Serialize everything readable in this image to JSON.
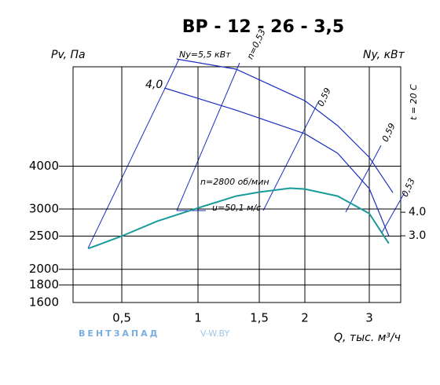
{
  "chart_data": {
    "type": "line",
    "title": "ВР - 12 - 26 - 3,5",
    "y_label": "Pv, Па",
    "y2_label": "Ny, кВт",
    "x_label": "Q, тыс. м³/ч",
    "temperature": "t = 20 С",
    "watermark": "ВЕНТЗАПАД",
    "watermark_url": "V-W.BY",
    "annotations": [
      "Ny=5,5 кВт",
      "4,0",
      "n=0,53",
      "0,59",
      "0,59",
      "0,53",
      "n=2800 об/мин",
      "u=50,1 м/с"
    ],
    "xlim": [
      0.18,
      3.5
    ],
    "xticks": [
      {
        "value": 0.5,
        "label": "0,5"
      },
      1,
      {
        "value": 1.5,
        "label": "1,5"
      },
      2,
      3
    ],
    "ylim": [
      1600,
      7800
    ],
    "yticks": [
      1600,
      1800,
      2000,
      2500,
      3000,
      4000
    ],
    "log_y": true,
    "y2lim": [
      0.17,
      10.17
    ],
    "y2ticks": [
      {
        "value": 4.0,
        "label": "4.0"
      },
      {
        "value": 3.0,
        "label": "3.0"
      }
    ],
    "grid": true,
    "series": [
      {
        "name": "Pv",
        "color": "#1a9a9a",
        "x": [
          0.28,
          0.5,
          0.73,
          1.0,
          1.31,
          1.5,
          1.84,
          2.0,
          2.51,
          3.0,
          3.31
        ],
        "values": [
          2300,
          2500,
          2760,
          3020,
          3270,
          3360,
          3450,
          3430,
          3270,
          2910,
          2380
        ]
      },
      {
        "name": "Ny 5,5",
        "color": "#1a2fc0",
        "axis": "y2",
        "x": [
          0.86,
          1.31,
          2.0,
          2.51,
          3.0,
          3.375
        ],
        "values": [
          10.5,
          10.07,
          8.73,
          7.67,
          6.33,
          4.83
        ]
      },
      {
        "name": "Ny 4,0",
        "color": "#1a2fc0",
        "axis": "y2",
        "x": [
          0.78,
          1.31,
          2.0,
          2.51,
          3.0,
          3.31
        ],
        "values": [
          9.27,
          8.33,
          7.33,
          6.5,
          5.0,
          3.0
        ]
      }
    ]
  }
}
